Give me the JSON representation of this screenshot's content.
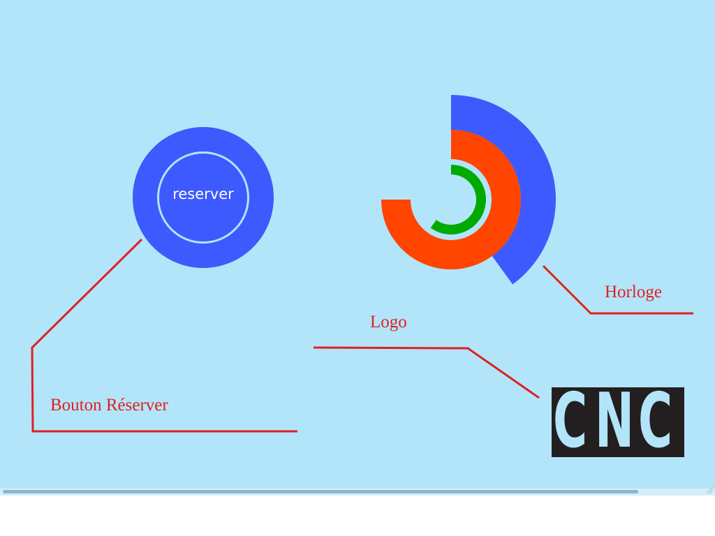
{
  "reserve_button": {
    "label": "reserver"
  },
  "annotations": {
    "reserve": "Bouton Réserver",
    "clock": "Horloge",
    "logo": "Logo"
  },
  "logo": {
    "text": "CNC",
    "letters": [
      "C",
      "N",
      "C"
    ]
  },
  "clock": {
    "arcs": [
      {
        "name": "outer",
        "color": "#3d5afe",
        "fraction": 0.4
      },
      {
        "name": "middle",
        "color": "#ff4500",
        "fraction": 0.75
      },
      {
        "name": "inner",
        "color": "#00aa00",
        "fraction": 0.6
      }
    ]
  },
  "colors": {
    "background": "#b3e5fa",
    "accent_blue": "#3d5afe",
    "annotation_red": "#e02020",
    "clock_orange": "#ff4500",
    "clock_green": "#00aa00",
    "logo_dark": "#231f20"
  }
}
